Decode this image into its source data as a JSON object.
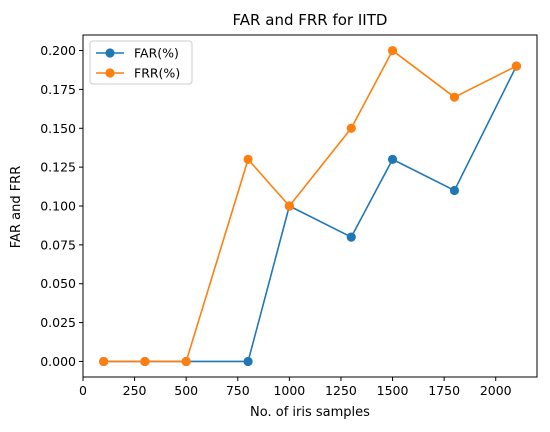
{
  "chart_data": {
    "type": "line",
    "title": "FAR and FRR for IITD",
    "xlabel": "No. of iris samples",
    "ylabel": "FAR and FRR",
    "x": [
      100,
      300,
      500,
      800,
      1000,
      1300,
      1500,
      1800,
      2100
    ],
    "xlim": [
      0,
      2200
    ],
    "ylim": [
      -0.01,
      0.21
    ],
    "xticks": [
      0,
      250,
      500,
      750,
      1000,
      1250,
      1500,
      1750,
      2000
    ],
    "xtick_labels": [
      "0",
      "250",
      "500",
      "750",
      "1000",
      "1250",
      "1500",
      "1750",
      "2000"
    ],
    "yticks": [
      0,
      0.025,
      0.05,
      0.075,
      0.1,
      0.125,
      0.15,
      0.175,
      0.2
    ],
    "ytick_labels": [
      "0.000",
      "0.025",
      "0.050",
      "0.075",
      "0.100",
      "0.125",
      "0.150",
      "0.175",
      "0.200"
    ],
    "grid": false,
    "legend_position": "top-left",
    "series": [
      {
        "name": "FAR(%)",
        "color": "#1f77b4",
        "values": [
          0.0,
          0.0,
          0.0,
          0.0,
          0.1,
          0.08,
          0.13,
          0.11,
          0.19
        ]
      },
      {
        "name": "FRR(%)",
        "color": "#ff7f0e",
        "values": [
          0.0,
          0.0,
          0.0,
          0.13,
          0.1,
          0.15,
          0.2,
          0.17,
          0.19
        ]
      }
    ]
  }
}
